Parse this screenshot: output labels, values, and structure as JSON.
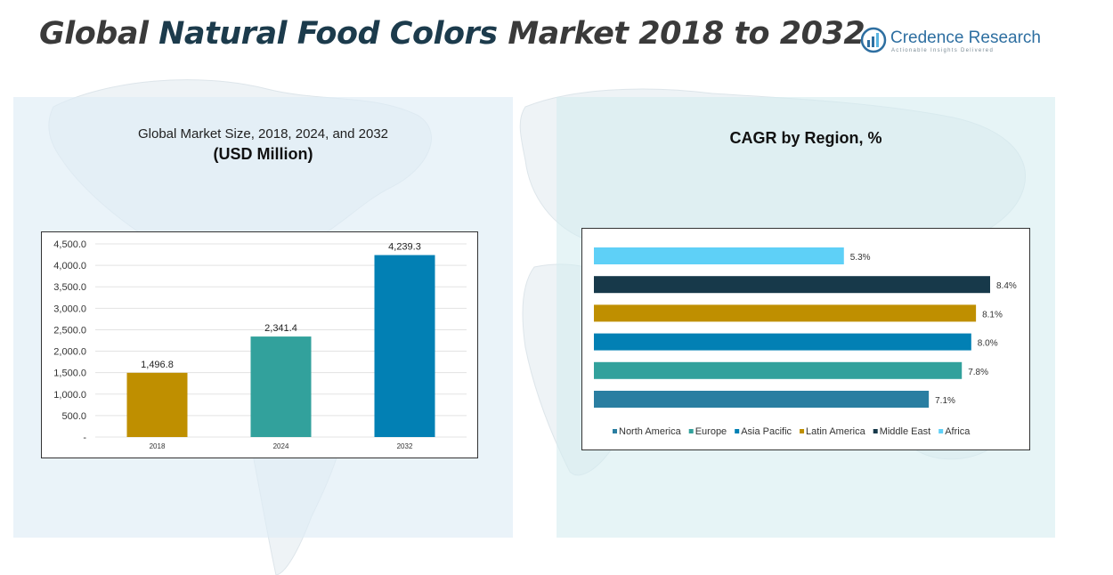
{
  "header": {
    "title_part1": "Global ",
    "title_accent": "Natural Food Colors",
    "title_part2": " Market 2018 to 2032"
  },
  "logo": {
    "name": "Credence Research",
    "tagline": "Actionable Insights Delivered"
  },
  "left_panel": {
    "subtitle": "Global Market Size, 2018, 2024, and 2032",
    "unit": "(USD Million)"
  },
  "right_panel": {
    "title": "CAGR by Region, %"
  },
  "colors": {
    "gold": "#bf8f00",
    "teal": "#32a19c",
    "blue": "#0280b4",
    "steel": "#2a7ea1",
    "navy": "#17394a",
    "sky": "#5ed0f7"
  },
  "chart_data": [
    {
      "type": "bar",
      "title": "Global Market Size, 2018, 2024, and 2032",
      "ylabel": "(USD Million)",
      "categories": [
        "2018",
        "2024",
        "2032"
      ],
      "values": [
        1496.8,
        2341.4,
        4239.3
      ],
      "value_labels": [
        "1,496.8",
        "2,341.4",
        "4,239.3"
      ],
      "bar_colors": [
        "#bf8f00",
        "#32a19c",
        "#0280b4"
      ],
      "ylim": [
        0,
        4500
      ],
      "yticks": [
        0,
        500,
        1000,
        1500,
        2000,
        2500,
        3000,
        3500,
        4000,
        4500
      ],
      "ytick_labels": [
        "-",
        "500.0",
        "1,000.0",
        "1,500.0",
        "2,000.0",
        "2,500.0",
        "3,000.0",
        "3,500.0",
        "4,000.0",
        "4,500.0"
      ],
      "grid": true,
      "legend": "none"
    },
    {
      "type": "bar",
      "orientation": "horizontal",
      "title": "CAGR by Region, %",
      "categories": [
        "Africa",
        "Middle East",
        "Latin America",
        "Asia Pacific",
        "Europe",
        "North America"
      ],
      "values": [
        5.3,
        8.4,
        8.1,
        8.0,
        7.8,
        7.1
      ],
      "value_labels": [
        "5.3%",
        "8.4%",
        "8.1%",
        "8.0%",
        "7.8%",
        "7.1%"
      ],
      "bar_colors": [
        "#5ed0f7",
        "#17394a",
        "#bf8f00",
        "#0280b4",
        "#32a19c",
        "#2a7ea1"
      ],
      "xlim": [
        0,
        8.4
      ],
      "legend": "bottom",
      "legend_entries": [
        {
          "name": "North America",
          "color": "#2a7ea1"
        },
        {
          "name": "Europe",
          "color": "#32a19c"
        },
        {
          "name": "Asia Pacific",
          "color": "#0280b4"
        },
        {
          "name": "Latin America",
          "color": "#bf8f00"
        },
        {
          "name": "Middle East",
          "color": "#17394a"
        },
        {
          "name": "Africa",
          "color": "#5ed0f7"
        }
      ]
    }
  ]
}
